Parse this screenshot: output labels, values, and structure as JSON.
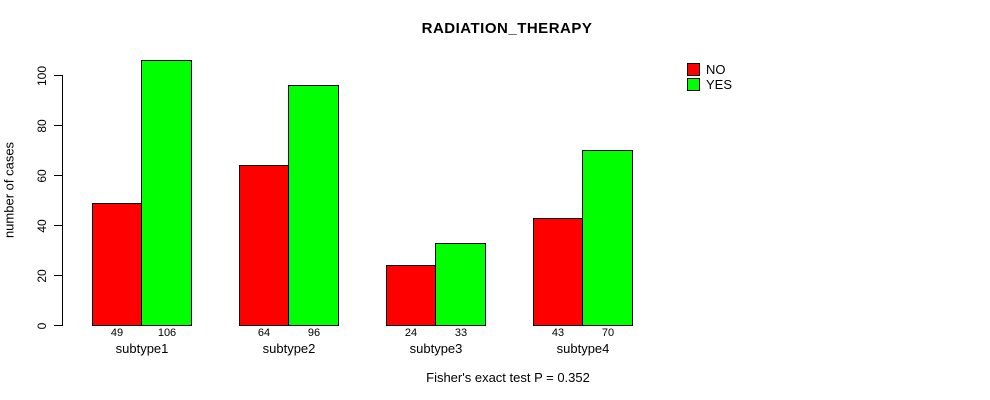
{
  "chart_data": {
    "type": "bar",
    "title": "RADIATION_THERAPY",
    "ylabel": "number of cases",
    "xlabel": "",
    "categories": [
      "subtype1",
      "subtype2",
      "subtype3",
      "subtype4"
    ],
    "series": [
      {
        "name": "NO",
        "color": "#ff0000",
        "values": [
          49,
          64,
          24,
          43
        ]
      },
      {
        "name": "YES",
        "color": "#00ff00",
        "values": [
          106,
          96,
          33,
          70
        ]
      }
    ],
    "yticks": [
      0,
      20,
      40,
      60,
      80,
      100
    ],
    "ylim": [
      0,
      110
    ],
    "grid": false,
    "legend_position": "top-right",
    "value_labels_shown": true,
    "caption": "Fisher's exact test P = 0.352",
    "bar_border_color": "#000000",
    "text_color": "#000000",
    "background_color": "#ffffff"
  }
}
